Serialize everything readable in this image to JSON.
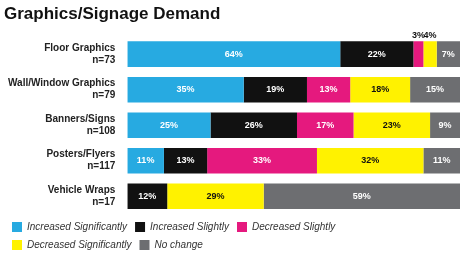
{
  "chart_data": {
    "type": "bar",
    "title": "Graphics/Signage Demand",
    "orientation": "horizontal",
    "stacked": true,
    "grid": false,
    "data_labels": true,
    "tick_labels": "y",
    "legend": "bottom",
    "categories": [
      [
        "Floor Graphics",
        "n=73"
      ],
      [
        "Wall/Window Graphics",
        "n=79"
      ],
      [
        "Banners/Signs",
        "n=108"
      ],
      [
        "Posters/Flyers",
        "n=117"
      ],
      [
        "Vehicle Wraps",
        "n=17"
      ]
    ],
    "xlim": [
      0,
      100
    ],
    "series": [
      {
        "name": "Increased Significantly",
        "color": "#27aae1",
        "values": [
          64,
          35,
          25,
          11,
          null
        ],
        "value_labels": [
          "64%",
          "35%",
          "25%",
          "11%",
          null
        ]
      },
      {
        "name": "Increased Slightly",
        "color": "#111111",
        "values": [
          22,
          19,
          26,
          13,
          12
        ],
        "value_labels": [
          "22%",
          "19%",
          "26%",
          "13%",
          "12%"
        ]
      },
      {
        "name": "Decreased Slightly",
        "color": "#e5197e",
        "values": [
          3,
          13,
          17,
          33,
          null
        ],
        "value_labels": [
          "3%",
          "13%",
          "17%",
          "33%",
          null
        ]
      },
      {
        "name": "Decreased Significantly",
        "color": "#fff200",
        "values": [
          4,
          18,
          23,
          32,
          29
        ],
        "value_labels": [
          "4%",
          "18%",
          "23%",
          "32%",
          "29%"
        ]
      },
      {
        "name": "No change",
        "color": "#6d6e71",
        "values": [
          7,
          15,
          9,
          11,
          59
        ],
        "value_labels": [
          "7%",
          "15%",
          "9%",
          "11%",
          "59%"
        ]
      }
    ]
  }
}
